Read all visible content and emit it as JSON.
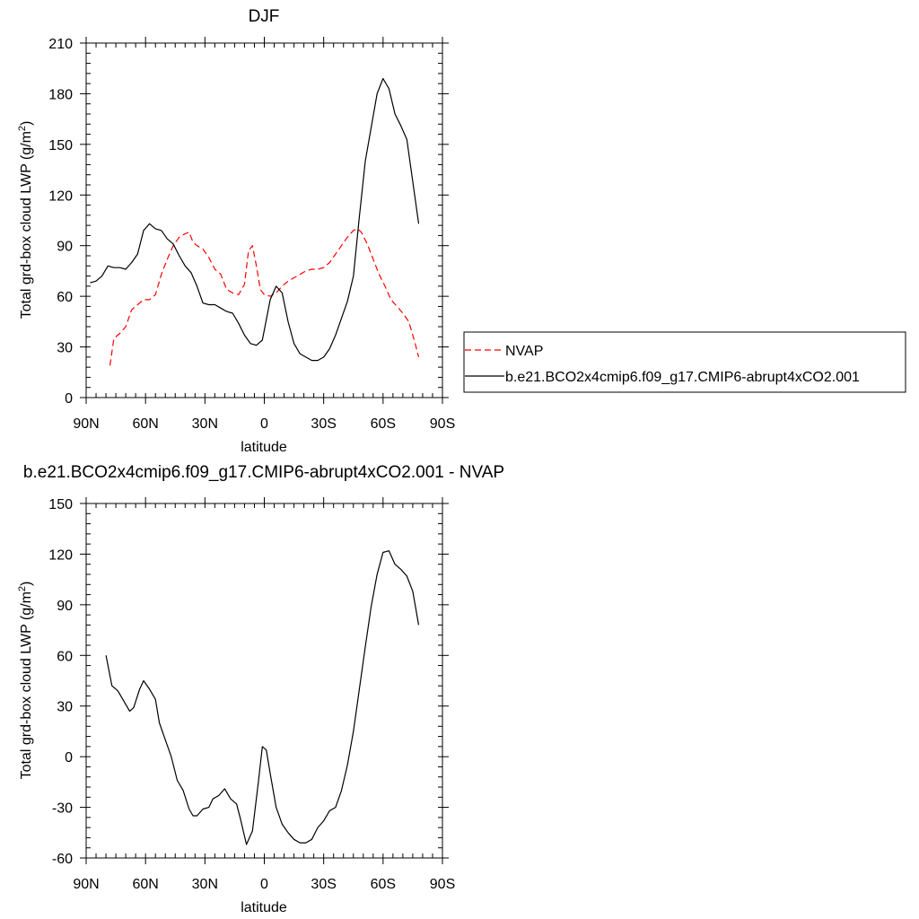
{
  "chart_data": [
    {
      "type": "line",
      "title": "DJF",
      "xlabel": "latitude",
      "ylabel": "Total grd-box cloud LWP",
      "ylabel_unit_prefix": "(g/m",
      "ylabel_unit_sup": "2",
      "ylabel_unit_suffix": ")",
      "xlim": [
        -90,
        90
      ],
      "ylim": [
        0,
        210
      ],
      "x_ticks": [
        {
          "v": -90,
          "label": "90N"
        },
        {
          "v": -60,
          "label": "60N"
        },
        {
          "v": -30,
          "label": "30N"
        },
        {
          "v": 0,
          "label": "0"
        },
        {
          "v": 30,
          "label": "30S"
        },
        {
          "v": 60,
          "label": "60S"
        },
        {
          "v": 90,
          "label": "90S"
        }
      ],
      "y_ticks": [
        0,
        30,
        60,
        90,
        120,
        150,
        180,
        210
      ],
      "x_minor_step": 5,
      "y_minor_step": 6,
      "grid": false,
      "legend_position": "right",
      "series": [
        {
          "name": "NVAP",
          "color": "#ff0000",
          "dash": "dashed",
          "x": [
            -78,
            -76,
            -73,
            -70,
            -67,
            -64,
            -61,
            -58,
            -55,
            -52,
            -49,
            -46,
            -43,
            -40,
            -38,
            -36,
            -34,
            -31,
            -28,
            -25,
            -22,
            -19,
            -16,
            -13,
            -10,
            -8,
            -6,
            -4,
            -2,
            0,
            3,
            6,
            9,
            12,
            15,
            18,
            21,
            24,
            27,
            30,
            33,
            36,
            39,
            42,
            45,
            47,
            49,
            52,
            55,
            58,
            61,
            64,
            67,
            70,
            73,
            76,
            78
          ],
          "y": [
            19,
            35,
            38,
            42,
            52,
            55,
            58,
            58,
            61,
            73,
            82,
            90,
            95,
            97,
            98,
            92,
            90,
            88,
            83,
            76,
            73,
            64,
            62,
            61,
            67,
            87,
            90,
            78,
            64,
            61,
            60,
            62,
            66,
            69,
            71,
            73,
            75,
            76,
            76,
            77,
            80,
            85,
            90,
            95,
            99,
            100,
            98,
            91,
            82,
            73,
            66,
            58,
            54,
            50,
            45,
            33,
            24
          ]
        },
        {
          "name": "b.e21.BCO2x4cmip6.f09_g17.CMIP6-abrupt4xCO2.001",
          "color": "#000000",
          "dash": "solid",
          "x": [
            -88,
            -85,
            -82,
            -79,
            -76,
            -73,
            -70,
            -67,
            -64,
            -61,
            -58,
            -55,
            -52,
            -49,
            -46,
            -43,
            -40,
            -37,
            -34,
            -31,
            -28,
            -25,
            -22,
            -19,
            -16,
            -13,
            -10,
            -7,
            -4,
            -1,
            1,
            3,
            6,
            9,
            12,
            15,
            18,
            21,
            24,
            27,
            30,
            33,
            36,
            39,
            42,
            45,
            48,
            51,
            54,
            57,
            60,
            63,
            66,
            69,
            72,
            75,
            78
          ],
          "y": [
            68,
            69,
            72,
            78,
            77,
            77,
            76,
            80,
            85,
            99,
            103,
            100,
            99,
            94,
            91,
            84,
            78,
            74,
            66,
            56,
            55,
            55,
            53,
            51,
            50,
            44,
            37,
            32,
            31,
            34,
            46,
            58,
            66,
            62,
            45,
            32,
            26,
            24,
            22,
            22,
            24,
            29,
            37,
            47,
            57,
            72,
            107,
            140,
            160,
            180,
            189,
            183,
            168,
            161,
            153,
            128,
            103
          ]
        }
      ]
    },
    {
      "type": "line",
      "title": "b.e21.BCO2x4cmip6.f09_g17.CMIP6-abrupt4xCO2.001 - NVAP",
      "xlabel": "latitude",
      "ylabel": "Total grd-box cloud LWP",
      "ylabel_unit_prefix": "(g/m",
      "ylabel_unit_sup": "2",
      "ylabel_unit_suffix": ")",
      "xlim": [
        -90,
        90
      ],
      "ylim": [
        -60,
        150
      ],
      "x_ticks": [
        {
          "v": -90,
          "label": "90N"
        },
        {
          "v": -60,
          "label": "60N"
        },
        {
          "v": -30,
          "label": "30N"
        },
        {
          "v": 0,
          "label": "0"
        },
        {
          "v": 30,
          "label": "30S"
        },
        {
          "v": 60,
          "label": "60S"
        },
        {
          "v": 90,
          "label": "90S"
        }
      ],
      "y_ticks": [
        -60,
        -30,
        0,
        30,
        60,
        90,
        120,
        150
      ],
      "x_minor_step": 5,
      "y_minor_step": 6,
      "grid": false,
      "series": [
        {
          "color": "#000000",
          "dash": "solid",
          "x": [
            -80,
            -77,
            -74,
            -71,
            -68,
            -66,
            -63,
            -61,
            -58,
            -55,
            -53,
            -50,
            -47,
            -44,
            -41,
            -38,
            -36,
            -34,
            -31,
            -28,
            -26,
            -23,
            -20,
            -17,
            -14,
            -12,
            -9,
            -6,
            -3,
            -1,
            1,
            3,
            6,
            9,
            12,
            15,
            18,
            21,
            24,
            27,
            30,
            33,
            36,
            39,
            42,
            45,
            48,
            51,
            54,
            57,
            60,
            63,
            66,
            69,
            72,
            75,
            78
          ],
          "y": [
            60,
            42,
            39,
            33,
            27,
            29,
            40,
            45,
            40,
            34,
            20,
            10,
            0,
            -14,
            -20,
            -31,
            -35,
            -35,
            -31,
            -30,
            -25,
            -23,
            -19,
            -25,
            -28,
            -37,
            -52,
            -44,
            -15,
            6,
            4,
            -10,
            -30,
            -40,
            -45,
            -49,
            -51,
            -51,
            -49,
            -42,
            -38,
            -32,
            -30,
            -20,
            -5,
            15,
            40,
            65,
            89,
            108,
            121,
            122,
            114,
            111,
            107,
            98,
            78
          ]
        }
      ]
    }
  ]
}
